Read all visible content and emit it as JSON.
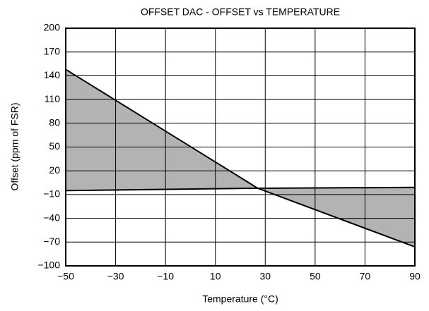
{
  "chart_data": {
    "type": "line",
    "title": "OFFSET DAC - OFFSET vs TEMPERATURE",
    "x_label": "Temperature (°C)",
    "y_label": "Offset (ppm of FSR)",
    "x": [
      -50,
      27,
      90
    ],
    "series": [
      {
        "color": "#000000",
        "values": [
          148,
          -2,
          -76
        ]
      },
      {
        "color": "#000000",
        "values": [
          -5,
          -2,
          -1
        ]
      }
    ],
    "fill_between": true,
    "fill_color": "#b3b3b3",
    "xlim": [
      -50,
      90
    ],
    "xticks": [
      {
        "value": -50,
        "label": "−50"
      },
      {
        "value": -30,
        "label": "−30"
      },
      {
        "value": -10,
        "label": "−10"
      },
      10,
      30,
      50,
      70,
      90
    ],
    "ylim": [
      -100,
      200
    ],
    "yticks": [
      {
        "value": -100,
        "label": "−100"
      },
      {
        "value": -70,
        "label": "−70"
      },
      {
        "value": -40,
        "label": "−40"
      },
      {
        "value": -10,
        "label": "−10"
      },
      20,
      50,
      80,
      110,
      140,
      170,
      200
    ],
    "grid": true
  }
}
